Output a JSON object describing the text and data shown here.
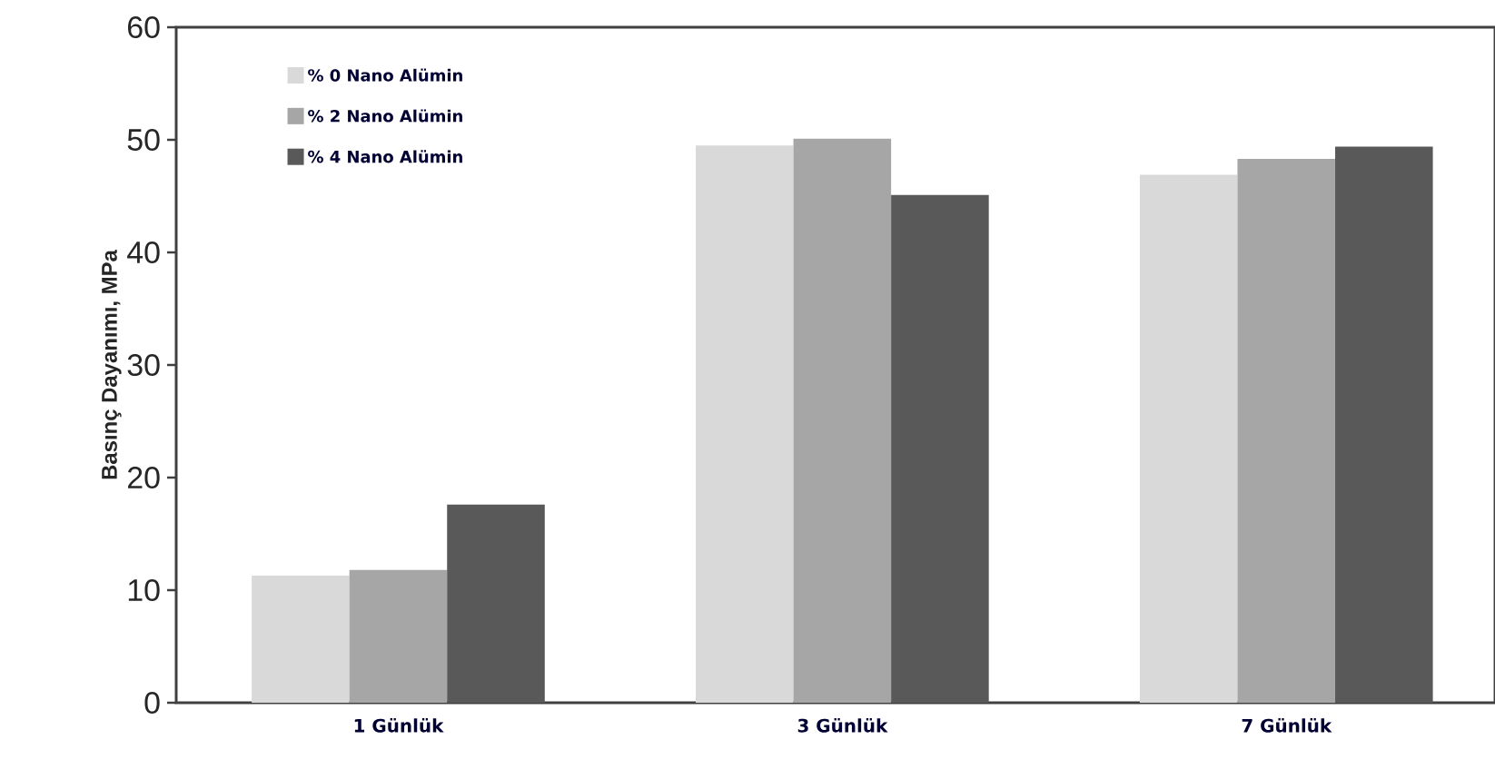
{
  "chart_data": {
    "type": "bar",
    "ylabel": "Basınç Dayanımı, MPa",
    "categories": [
      "1 Günlük",
      "3 Günlük",
      "7 Günlük"
    ],
    "series": [
      {
        "name": "% 0 Nano Alümin",
        "color": "#d9d9d9",
        "values": [
          11.3,
          49.5,
          46.9
        ]
      },
      {
        "name": "% 2 Nano Alümin",
        "color": "#a6a6a6",
        "values": [
          11.8,
          50.1,
          48.3
        ]
      },
      {
        "name": "% 4 Nano Alümin",
        "color": "#595959",
        "values": [
          17.6,
          45.1,
          49.4
        ]
      }
    ],
    "ylim": [
      0,
      60
    ],
    "yticks": [
      0,
      10,
      20,
      30,
      40,
      50,
      60
    ],
    "grid": false,
    "legend": "top left"
  }
}
